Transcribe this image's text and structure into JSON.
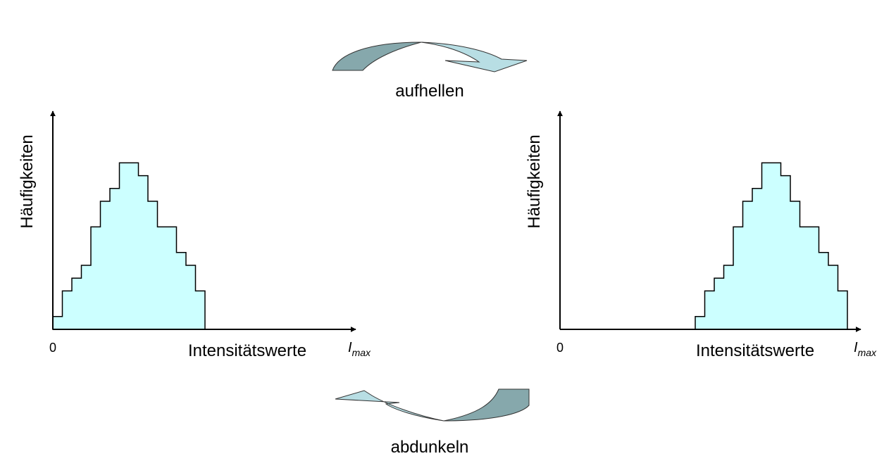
{
  "caption_top": "aufhellen",
  "caption_bottom": "abdunkeln",
  "histogram_left": {
    "ylabel": "Häufigkeiten",
    "xlabel": "Intensitätswerte",
    "origin_label": "0",
    "max_label_main": "I",
    "max_label_sub": "max",
    "bar_heights": [
      1,
      3,
      4,
      5,
      8,
      10,
      11,
      13,
      13,
      12,
      10,
      8,
      8,
      6,
      5,
      3
    ]
  },
  "histogram_right": {
    "ylabel": "Häufigkeiten",
    "xlabel": "Intensitätswerte",
    "origin_label": "0",
    "max_label_main": "I",
    "max_label_sub": "max",
    "bar_heights": [
      1,
      3,
      4,
      5,
      8,
      10,
      11,
      13,
      13,
      12,
      10,
      8,
      8,
      6,
      5,
      3
    ]
  },
  "colors": {
    "histogram_fill": "#ccffff",
    "arrow_dark": "#86a8ac",
    "arrow_light": "#b8dee4",
    "outline": "#000000"
  }
}
